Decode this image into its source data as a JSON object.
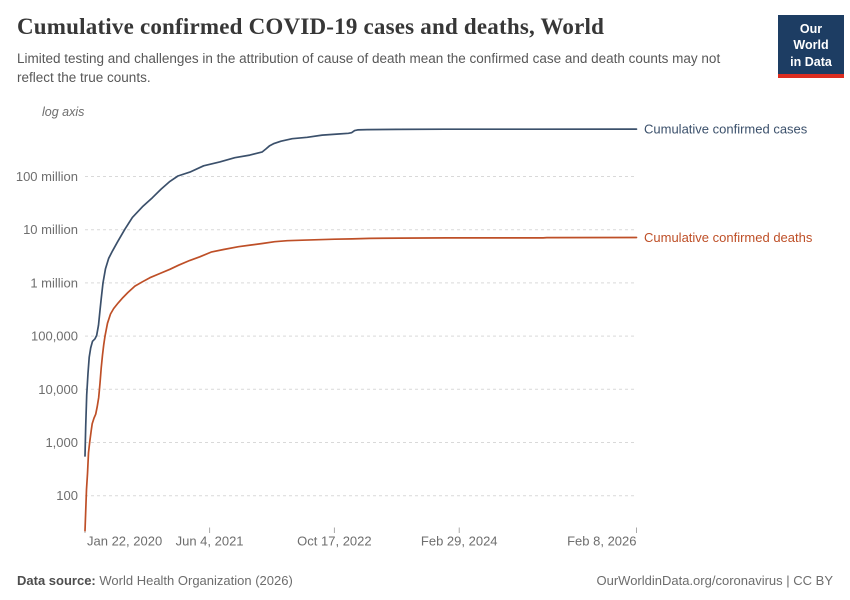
{
  "header": {
    "title": "Cumulative confirmed COVID-19 cases and deaths, World",
    "subtitle": "Limited testing and challenges in the attribution of cause of death mean the confirmed case and death counts may not reflect the true counts.",
    "logo": {
      "line1": "Our World",
      "line2": "in Data"
    }
  },
  "footer": {
    "source_label": "Data source:",
    "source_value": "World Health Organization (2026)",
    "url": "OurWorldinData.org/coronavirus",
    "license": " | CC BY"
  },
  "chart_data": {
    "type": "line",
    "title": "Cumulative confirmed COVID-19 cases and deaths, World",
    "scale_note": "log axis",
    "grid": "dashed horizontal",
    "legend_position": "right of line ends",
    "x_axis": {
      "unit": "days since Jan 22, 2020",
      "total_days": 2209,
      "ticks": [
        {
          "label": "Jan 22, 2020",
          "day": 0,
          "align": "start"
        },
        {
          "label": "Jun 4, 2021",
          "day": 499,
          "align": "middle"
        },
        {
          "label": "Oct 17, 2022",
          "day": 999,
          "align": "middle"
        },
        {
          "label": "Feb 29, 2024",
          "day": 1499,
          "align": "middle"
        },
        {
          "label": "Feb 8, 2026",
          "day": 2209,
          "align": "end"
        }
      ]
    },
    "y_axis": {
      "scale": "log",
      "range": [
        100,
        1000000000
      ],
      "ticks": [
        {
          "label": "100 million",
          "value": 100000000
        },
        {
          "label": "10 million",
          "value": 10000000
        },
        {
          "label": "1 million",
          "value": 1000000
        },
        {
          "label": "100,000",
          "value": 100000
        },
        {
          "label": "10,000",
          "value": 10000
        },
        {
          "label": "1,000",
          "value": 1000
        },
        {
          "label": "100",
          "value": 100
        }
      ]
    },
    "series": [
      {
        "name": "Cumulative confirmed cases",
        "color": "#3b506b",
        "points": [
          [
            0,
            557
          ],
          [
            3,
            2000
          ],
          [
            7,
            7800
          ],
          [
            12,
            20000
          ],
          [
            17,
            40000
          ],
          [
            23,
            60000
          ],
          [
            30,
            80000
          ],
          [
            40,
            89000
          ],
          [
            47,
            104000
          ],
          [
            54,
            160000
          ],
          [
            60,
            305000
          ],
          [
            65,
            500000
          ],
          [
            72,
            1000000
          ],
          [
            82,
            1850000
          ],
          [
            95,
            2900000
          ],
          [
            110,
            4000000
          ],
          [
            130,
            5900000
          ],
          [
            160,
            10200000
          ],
          [
            190,
            17000000
          ],
          [
            230,
            27000000
          ],
          [
            270,
            40000000
          ],
          [
            305,
            58000000
          ],
          [
            340,
            81000000
          ],
          [
            372,
            102000000
          ],
          [
            420,
            121000000
          ],
          [
            475,
            159000000
          ],
          [
            540,
            188000000
          ],
          [
            600,
            226000000
          ],
          [
            660,
            252000000
          ],
          [
            710,
            290000000
          ],
          [
            725,
            330000000
          ],
          [
            740,
            380000000
          ],
          [
            755,
            413000000
          ],
          [
            785,
            460000000
          ],
          [
            830,
            513000000
          ],
          [
            890,
            546000000
          ],
          [
            950,
            600000000
          ],
          [
            1015,
            630000000
          ],
          [
            1055,
            650000000
          ],
          [
            1068,
            665000000
          ],
          [
            1080,
            730000000
          ],
          [
            1092,
            750000000
          ],
          [
            1130,
            760000000
          ],
          [
            1250,
            768000000
          ],
          [
            1440,
            773000000
          ],
          [
            1800,
            776000000
          ],
          [
            2209,
            778000000
          ]
        ]
      },
      {
        "name": "Cumulative confirmed deaths",
        "color": "#be4f27",
        "points": [
          [
            0,
            22
          ],
          [
            6,
            132
          ],
          [
            10,
            259
          ],
          [
            14,
            640
          ],
          [
            19,
            1016
          ],
          [
            25,
            1670
          ],
          [
            29,
            2250
          ],
          [
            36,
            2870
          ],
          [
            43,
            3400
          ],
          [
            49,
            4700
          ],
          [
            55,
            7000
          ],
          [
            60,
            13000
          ],
          [
            65,
            25000
          ],
          [
            70,
            44000
          ],
          [
            75,
            68000
          ],
          [
            80,
            100000
          ],
          [
            90,
            175000
          ],
          [
            102,
            260000
          ],
          [
            115,
            330000
          ],
          [
            133,
            420000
          ],
          [
            152,
            530000
          ],
          [
            172,
            660000
          ],
          [
            200,
            870000
          ],
          [
            230,
            1050000
          ],
          [
            260,
            1250000
          ],
          [
            300,
            1500000
          ],
          [
            340,
            1800000
          ],
          [
            375,
            2150000
          ],
          [
            420,
            2650000
          ],
          [
            460,
            3100000
          ],
          [
            505,
            3800000
          ],
          [
            555,
            4250000
          ],
          [
            615,
            4800000
          ],
          [
            665,
            5150000
          ],
          [
            710,
            5500000
          ],
          [
            760,
            5950000
          ],
          [
            810,
            6200000
          ],
          [
            870,
            6350000
          ],
          [
            935,
            6500000
          ],
          [
            1000,
            6620000
          ],
          [
            1070,
            6720000
          ],
          [
            1140,
            6870000
          ],
          [
            1260,
            6950000
          ],
          [
            1450,
            7000000
          ],
          [
            1835,
            7020000
          ],
          [
            1850,
            7090000
          ],
          [
            2209,
            7120000
          ]
        ]
      }
    ]
  }
}
